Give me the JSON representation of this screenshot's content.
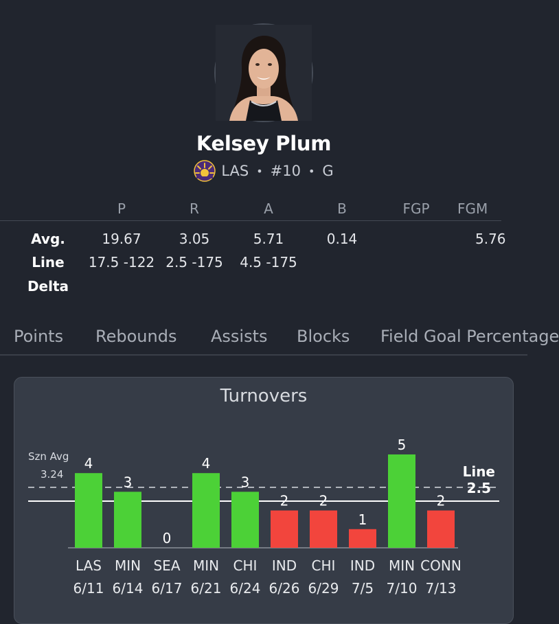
{
  "player": {
    "name": "Kelsey Plum",
    "team": "LAS",
    "number": "#10",
    "position": "G",
    "separator": "•"
  },
  "stats_table": {
    "headers": [
      "P",
      "R",
      "A",
      "B",
      "FGP",
      "FGM"
    ],
    "rows": [
      {
        "label": "Avg.",
        "values": [
          "19.67",
          "3.05",
          "5.71",
          "0.14",
          "",
          "5.76"
        ]
      },
      {
        "label": "Line",
        "values": [
          "17.5 -122",
          "2.5 -175",
          "4.5 -175",
          "",
          "",
          ""
        ]
      },
      {
        "label": "Delta",
        "values": [
          "",
          "",
          "",
          "",
          "",
          ""
        ]
      }
    ]
  },
  "tabs": [
    "Points",
    "Rebounds",
    "Assists",
    "Blocks",
    "Field Goal Percentage"
  ],
  "colors": {
    "background": "#21252e",
    "card": "#363c47",
    "over": "#4cd137",
    "under": "#f2453d"
  },
  "chart_data": {
    "type": "bar",
    "title": "Turnovers",
    "categories": [
      "LAS 6/11",
      "MIN 6/14",
      "SEA 6/17",
      "MIN 6/21",
      "CHI 6/24",
      "IND 6/26",
      "CHI 6/29",
      "IND 7/5",
      "MIN 7/10",
      "CONN 7/13"
    ],
    "opponents": [
      "LAS",
      "MIN",
      "SEA",
      "MIN",
      "CHI",
      "IND",
      "CHI",
      "IND",
      "MIN",
      "CONN"
    ],
    "dates": [
      "6/11",
      "6/14",
      "6/17",
      "6/21",
      "6/24",
      "6/26",
      "6/29",
      "7/5",
      "7/10",
      "7/13"
    ],
    "values": [
      4,
      3,
      0,
      4,
      3,
      2,
      2,
      1,
      5,
      2
    ],
    "ylim": [
      0,
      5
    ],
    "season_avg_label": "Szn Avg",
    "season_avg": 3.24,
    "season_avg_text": "3.24",
    "line_label": "Line",
    "line": 2.5,
    "line_text": "2.5",
    "xlabel": "",
    "ylabel": ""
  }
}
